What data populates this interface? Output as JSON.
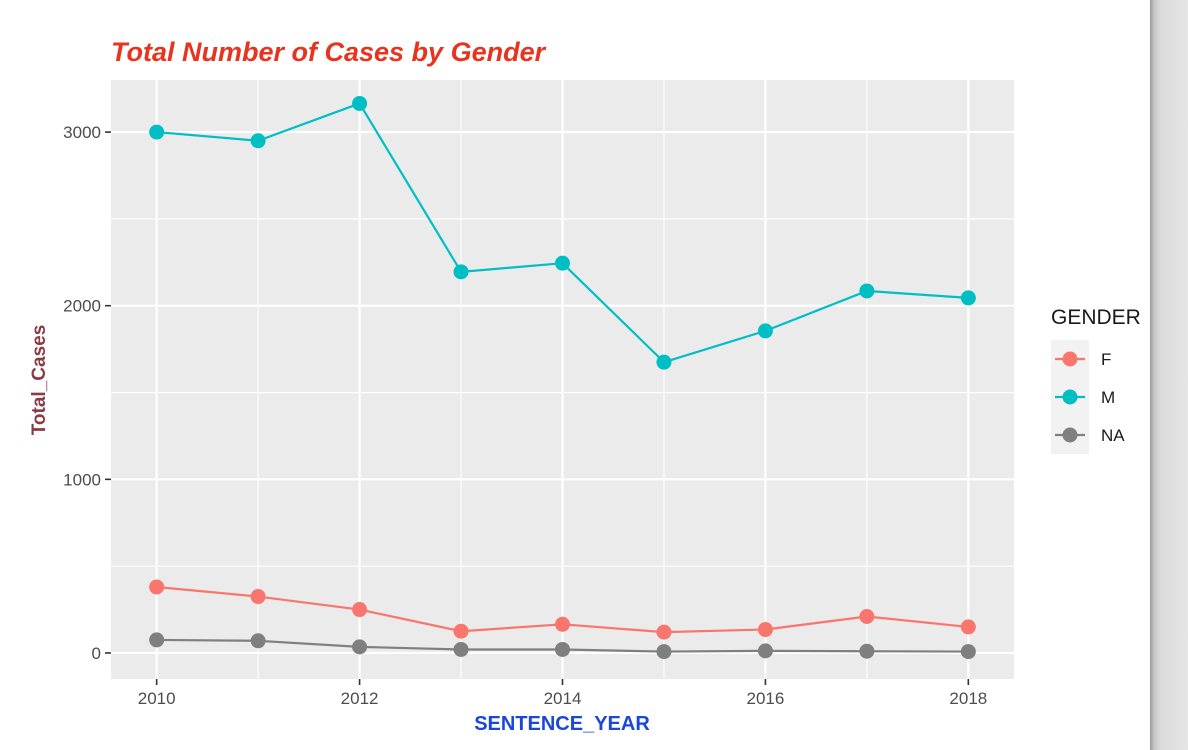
{
  "chart_data": {
    "type": "line",
    "title": "Total Number of Cases by Gender",
    "xlabel": "SENTENCE_YEAR",
    "ylabel": "Total_Cases",
    "x": [
      2010,
      2011,
      2012,
      2013,
      2014,
      2015,
      2016,
      2017,
      2018
    ],
    "xlim": [
      2009.55,
      2018.45
    ],
    "ylim": [
      -150,
      3300
    ],
    "x_ticks": [
      2010,
      2012,
      2014,
      2016,
      2018
    ],
    "y_ticks": [
      0,
      1000,
      2000,
      3000
    ],
    "x_tick_labels": [
      "2010",
      "2012",
      "2014",
      "2016",
      "2018"
    ],
    "y_tick_labels": [
      "0",
      "1000",
      "2000",
      "3000"
    ],
    "grid": true,
    "legend": {
      "title": "GENDER",
      "position": "right"
    },
    "series": [
      {
        "name": "F",
        "color": "#F8766D",
        "values": [
          380,
          325,
          250,
          125,
          165,
          120,
          135,
          210,
          150
        ]
      },
      {
        "name": "M",
        "color": "#00BFC4",
        "values": [
          3000,
          2950,
          3165,
          2195,
          2245,
          1675,
          1855,
          2085,
          2045
        ]
      },
      {
        "name": "NA",
        "color": "#7F7F7F",
        "values": [
          75,
          70,
          35,
          20,
          20,
          8,
          12,
          10,
          8
        ]
      }
    ],
    "colors": {
      "title": "#E8341F",
      "xlabel": "#1A47D9",
      "ylabel": "#8C3A43",
      "panel": "#EBEBEB",
      "grid": "#FFFFFF",
      "tick_text": "#4D4D4D"
    }
  }
}
